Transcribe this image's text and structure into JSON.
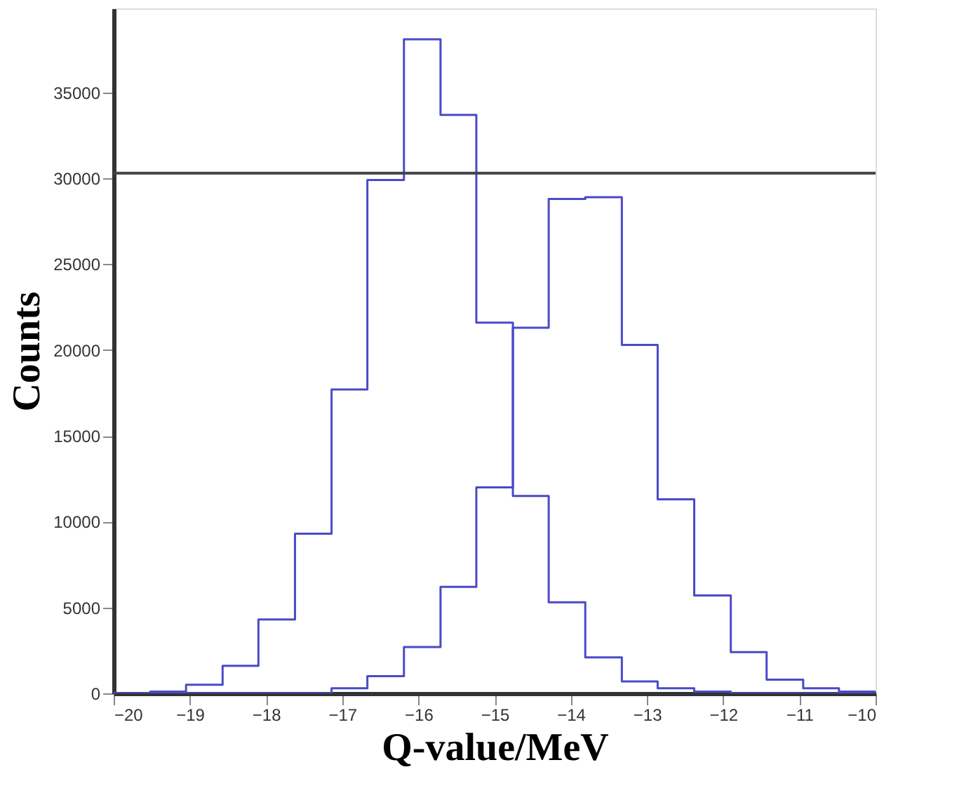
{
  "chart_data": {
    "type": "histogram",
    "xlabel": "Q-value/MeV",
    "ylabel": "Counts",
    "bins": [
      -20,
      -19.52,
      -19.05,
      -18.57,
      -18.1,
      -17.62,
      -17.14,
      -16.67,
      -16.19,
      -15.71,
      -15.24,
      -14.76,
      -14.29,
      -13.81,
      -13.33,
      -12.86,
      -12.38,
      -11.9,
      -11.43,
      -10.95,
      -10.48,
      -10
    ],
    "series": [
      {
        "color": "#4a4ac8",
        "values": [
          0,
          100,
          500,
          1600,
          4300,
          9300,
          17700,
          29900,
          38100,
          33700,
          21600,
          11500,
          5300,
          2100,
          700,
          300,
          100,
          0,
          0,
          0,
          0
        ]
      },
      {
        "color": "#4a4ac8",
        "values": [
          0,
          0,
          0,
          0,
          0,
          0,
          300,
          1000,
          2700,
          6200,
          12000,
          21300,
          28800,
          28900,
          20300,
          11300,
          5700,
          2400,
          800,
          300,
          100
        ]
      }
    ],
    "xlim": [
      -20,
      -10
    ],
    "xticks": [
      -20,
      -19,
      -18,
      -17,
      -16,
      -15,
      -14,
      -13,
      -12,
      -11,
      -10
    ],
    "ylim": [
      0,
      39900
    ],
    "yticks": [
      0,
      5000,
      10000,
      15000,
      20000,
      25000,
      30000,
      35000
    ],
    "ref_lines": [
      {
        "axis": "y",
        "value": 30300,
        "color": "#444444"
      }
    ],
    "grid": false
  }
}
